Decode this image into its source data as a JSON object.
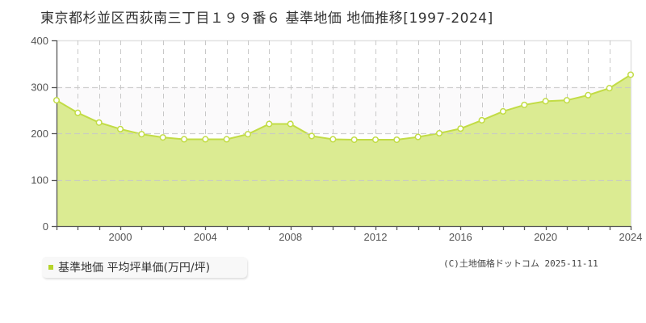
{
  "title": "東京都杉並区西荻南三丁目１９９番６ 基準地価 地価推移[1997-2024]",
  "legend": {
    "label": "基準地価 平均坪単価(万円/坪)",
    "color": "#b5d42a"
  },
  "copyright": "(C)土地価格ドットコム 2025-11-11",
  "colors": {
    "fill": "#dbeb92",
    "line": "#c2dc45",
    "marker_stroke": "#c2dc45",
    "marker_fill": "#ffffff",
    "band": "#fbfafb",
    "grid": "#c8c8c8",
    "axis": "#555555"
  },
  "chart_data": {
    "type": "area",
    "title": "東京都杉並区西荻南三丁目１９９番６ 基準地価 地価推移[1997-2024]",
    "xlabel": "",
    "ylabel": "",
    "x": [
      1997,
      1998,
      1999,
      2000,
      2001,
      2002,
      2003,
      2004,
      2005,
      2006,
      2007,
      2008,
      2009,
      2010,
      2011,
      2012,
      2013,
      2014,
      2015,
      2016,
      2017,
      2018,
      2019,
      2020,
      2021,
      2022,
      2023,
      2024
    ],
    "series": [
      {
        "name": "基準地価 平均坪単価(万円/坪)",
        "values": [
          271,
          244,
          223,
          209,
          198,
          191,
          187,
          187,
          187,
          198,
          220,
          220,
          194,
          187,
          186,
          186,
          186,
          192,
          200,
          210,
          228,
          247,
          261,
          269,
          271,
          282,
          297,
          326
        ]
      }
    ],
    "ylim": [
      0,
      400
    ],
    "yticks": [
      0,
      100,
      200,
      300,
      400
    ],
    "xticks": [
      2000,
      2004,
      2008,
      2012,
      2016,
      2020,
      2024
    ],
    "xlim": [
      1997,
      2024
    ],
    "grid": true,
    "legend_position": "bottom-left"
  }
}
